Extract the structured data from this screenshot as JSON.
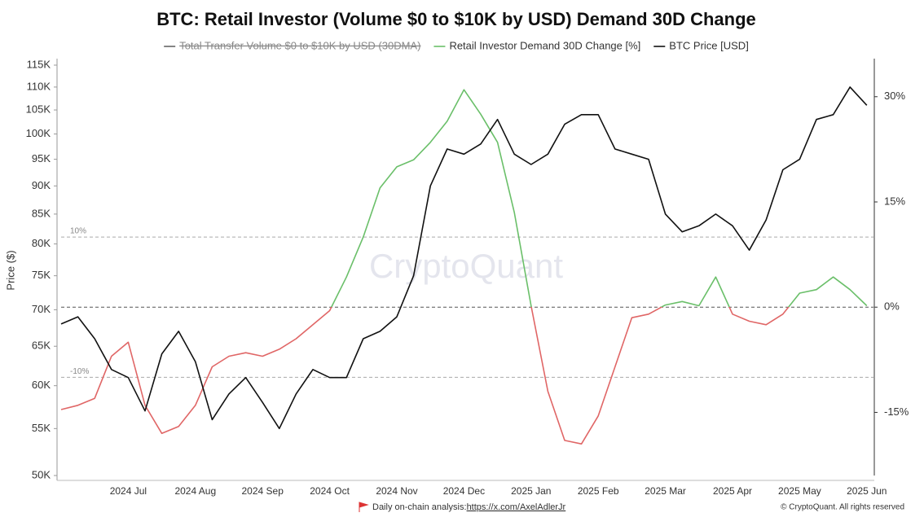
{
  "chart_data": {
    "type": "line",
    "title": "BTC: Retail Investor (Volume $0 to $10K by USD) Demand 30D Change",
    "hidden_series": [
      {
        "name": "Total Transfer Volume $0 to $10K by USD (30DMA)",
        "color": "#666666"
      }
    ],
    "categories": [
      null,
      null,
      null,
      null,
      "2024 Jul",
      null,
      null,
      null,
      "2024 Aug",
      null,
      null,
      null,
      "2024 Sep",
      null,
      null,
      null,
      "2024 Oct",
      null,
      null,
      null,
      "2024 Nov",
      null,
      null,
      null,
      "2024 Dec",
      null,
      null,
      null,
      "2025 Jan",
      null,
      null,
      null,
      "2025 Feb",
      null,
      null,
      null,
      "2025 Mar",
      null,
      null,
      null,
      "2025 Apr",
      null,
      null,
      null,
      "2025 May",
      null,
      null,
      null,
      "2025 Jun"
    ],
    "series": [
      {
        "name": "Retail Investor Demand 30D Change [%]",
        "color": "#6abf69",
        "negative_color": "#e06666",
        "axis": "y2",
        "values": [
          -14.6,
          -14,
          -13,
          -7,
          -5,
          -14,
          -18,
          -17,
          -14,
          -8.5,
          -7,
          -6.5,
          -7,
          -6,
          -4.5,
          -2.5,
          -0.5,
          4.3,
          10,
          17,
          20,
          21,
          23.5,
          26.5,
          31,
          27.5,
          23.5,
          13.5,
          0.2,
          -12,
          -19,
          -19.5,
          -15.5,
          -8.5,
          -1.5,
          -1,
          0.3,
          0.8,
          0.2,
          4.3,
          -1,
          -2,
          -2.5,
          -1,
          2,
          2.5,
          4.3,
          2.5,
          0.2
        ]
      },
      {
        "name": "BTC Price [USD]",
        "color": "#111111",
        "axis": "y",
        "values": [
          68000,
          69000,
          66000,
          62000,
          61000,
          57000,
          64000,
          67000,
          63000,
          56000,
          59000,
          61000,
          58000,
          55000,
          59000,
          62000,
          61000,
          61000,
          66000,
          67000,
          69000,
          75000,
          90000,
          97000,
          96000,
          98000,
          103000,
          96000,
          94000,
          96000,
          102000,
          104000,
          104000,
          97000,
          96000,
          95000,
          85000,
          82000,
          83000,
          85000,
          83000,
          79000,
          84000,
          93000,
          95000,
          103000,
          104000,
          110000,
          106000
        ]
      }
    ],
    "ylabel": "Price ($)",
    "ylog": true,
    "ylim": [
      50000,
      115000
    ],
    "yticks": [
      {
        "value": 50000,
        "label": "50K"
      },
      {
        "value": 55000,
        "label": "55K"
      },
      {
        "value": 60000,
        "label": "60K"
      },
      {
        "value": 65000,
        "label": "65K"
      },
      {
        "value": 70000,
        "label": "70K"
      },
      {
        "value": 75000,
        "label": "75K"
      },
      {
        "value": 80000,
        "label": "80K"
      },
      {
        "value": 85000,
        "label": "85K"
      },
      {
        "value": 90000,
        "label": "90K"
      },
      {
        "value": 95000,
        "label": "95K"
      },
      {
        "value": 100000,
        "label": "100K"
      },
      {
        "value": 105000,
        "label": "105K"
      },
      {
        "value": 110000,
        "label": "110K"
      },
      {
        "value": 115000,
        "label": "115K"
      }
    ],
    "y2lim": [
      -24,
      34.5
    ],
    "y2ticks": [
      {
        "value": -15,
        "label": "-15%"
      },
      {
        "value": 0,
        "label": "0%"
      },
      {
        "value": 15,
        "label": "15%"
      },
      {
        "value": 30,
        "label": "30%"
      }
    ],
    "reference_lines": [
      {
        "value": 10,
        "label": "10%"
      },
      {
        "value": -10,
        "label": "-10%"
      }
    ],
    "watermark": "CryptoQuant",
    "footer": {
      "text": "Daily on-chain analysis: ",
      "link": "https://x.com/AxelAdlerJr",
      "copyright": "© CryptoQuant. All rights reserved"
    }
  }
}
